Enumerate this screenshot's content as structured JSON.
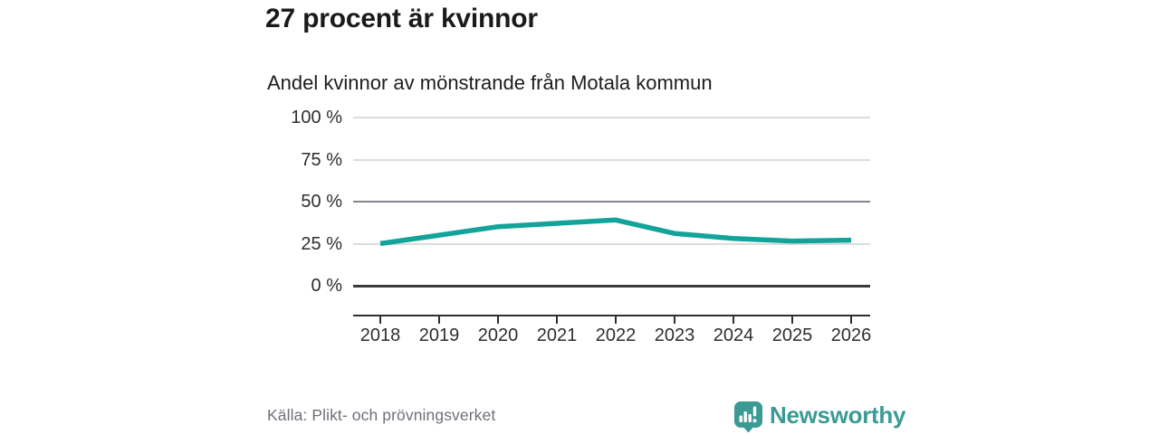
{
  "header": {
    "title": "27 procent är kvinnor",
    "subtitle": "Andel kvinnor av mönstrande från Motala kommun"
  },
  "chart_data": {
    "type": "line",
    "title": "27 procent är kvinnor",
    "subtitle": "Andel kvinnor av mönstrande från Motala kommun",
    "categories": [
      "2018",
      "2019",
      "2020",
      "2021",
      "2022",
      "2023",
      "2024",
      "2025",
      "2026"
    ],
    "values": [
      25,
      30,
      35,
      37,
      39,
      31,
      28,
      26.5,
      27
    ],
    "unit": "%",
    "ylim": [
      0,
      100
    ],
    "y_tick_labels": [
      "100 %",
      "75 %",
      "50 %",
      "25 %",
      "0 %"
    ],
    "grid": "horizontal",
    "reference_line_at": 50,
    "legend": "none",
    "line_color": "#12a49a"
  },
  "footer": {
    "source": "Källa: Plikt- och prövningsverket",
    "brand": "Newsworthy"
  },
  "colors": {
    "accent_line": "#12a49a",
    "brand_teal": "#3c9a94",
    "grid_light": "#dcdcdc",
    "grid_mid": "#84848c",
    "zero_line": "#3a3a3a"
  }
}
